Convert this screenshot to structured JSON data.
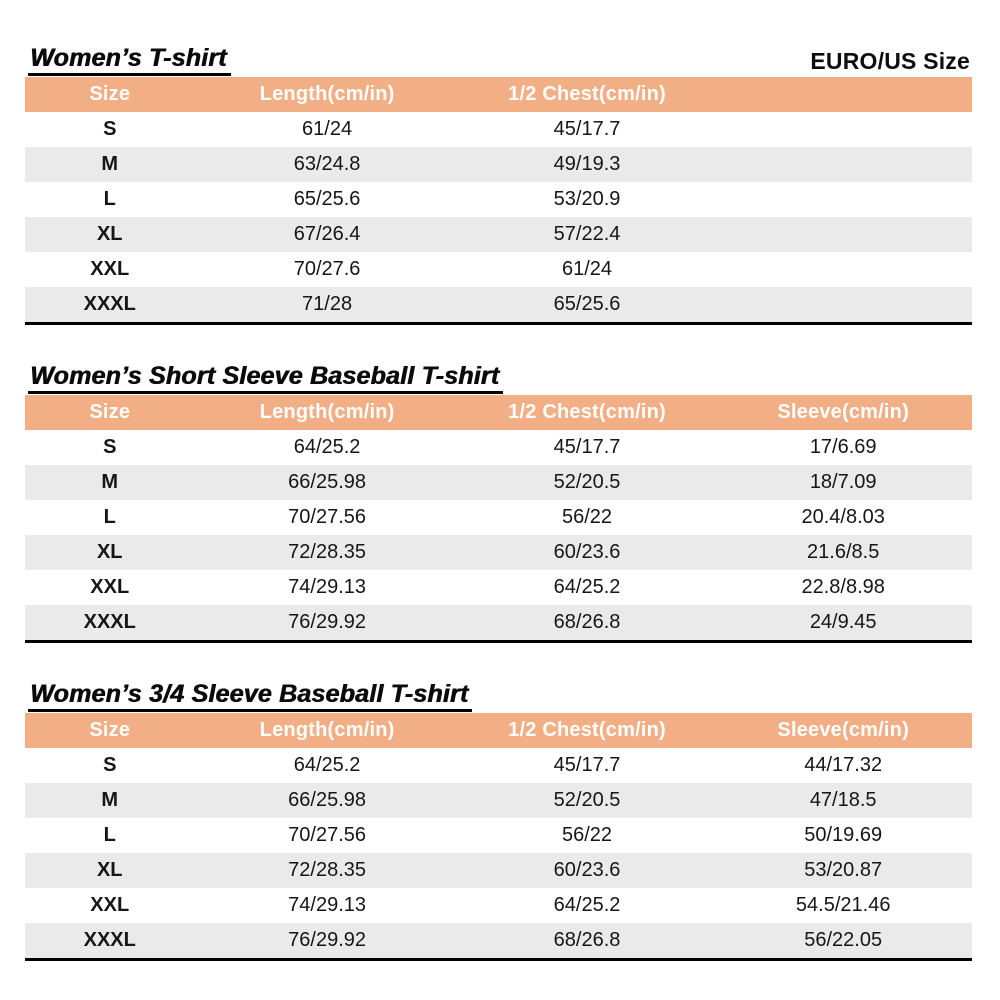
{
  "page": {
    "size_standard_label": "EURO/US Size"
  },
  "colors": {
    "header_bg": "#f2ae85",
    "header_text": "#ffffff",
    "row_alt_bg": "#eaeaea",
    "text_color": "#161616",
    "table_bottom_border": "#000000"
  },
  "tables": [
    {
      "title": "Women’s T-shirt",
      "columns": [
        "Size",
        "Length(cm/in)",
        "1/2 Chest(cm/in)",
        ""
      ],
      "rows": [
        [
          "S",
          "61/24",
          "45/17.7",
          ""
        ],
        [
          "M",
          "63/24.8",
          "49/19.3",
          ""
        ],
        [
          "L",
          "65/25.6",
          "53/20.9",
          ""
        ],
        [
          "XL",
          "67/26.4",
          "57/22.4",
          ""
        ],
        [
          "XXL",
          "70/27.6",
          "61/24",
          ""
        ],
        [
          "XXXL",
          "71/28",
          "65/25.6",
          ""
        ]
      ]
    },
    {
      "title": "Women’s Short Sleeve Baseball T-shirt",
      "columns": [
        "Size",
        "Length(cm/in)",
        "1/2 Chest(cm/in)",
        "Sleeve(cm/in)"
      ],
      "rows": [
        [
          "S",
          "64/25.2",
          "45/17.7",
          "17/6.69"
        ],
        [
          "M",
          "66/25.98",
          "52/20.5",
          "18/7.09"
        ],
        [
          "L",
          "70/27.56",
          "56/22",
          "20.4/8.03"
        ],
        [
          "XL",
          "72/28.35",
          "60/23.6",
          "21.6/8.5"
        ],
        [
          "XXL",
          "74/29.13",
          "64/25.2",
          "22.8/8.98"
        ],
        [
          "XXXL",
          "76/29.92",
          "68/26.8",
          "24/9.45"
        ]
      ]
    },
    {
      "title": "Women’s 3/4 Sleeve Baseball T-shirt",
      "columns": [
        "Size",
        "Length(cm/in)",
        "1/2 Chest(cm/in)",
        "Sleeve(cm/in)"
      ],
      "rows": [
        [
          "S",
          "64/25.2",
          "45/17.7",
          "44/17.32"
        ],
        [
          "M",
          "66/25.98",
          "52/20.5",
          "47/18.5"
        ],
        [
          "L",
          "70/27.56",
          "56/22",
          "50/19.69"
        ],
        [
          "XL",
          "72/28.35",
          "60/23.6",
          "53/20.87"
        ],
        [
          "XXL",
          "74/29.13",
          "64/25.2",
          "54.5/21.46"
        ],
        [
          "XXXL",
          "76/29.92",
          "68/26.8",
          "56/22.05"
        ]
      ]
    }
  ]
}
